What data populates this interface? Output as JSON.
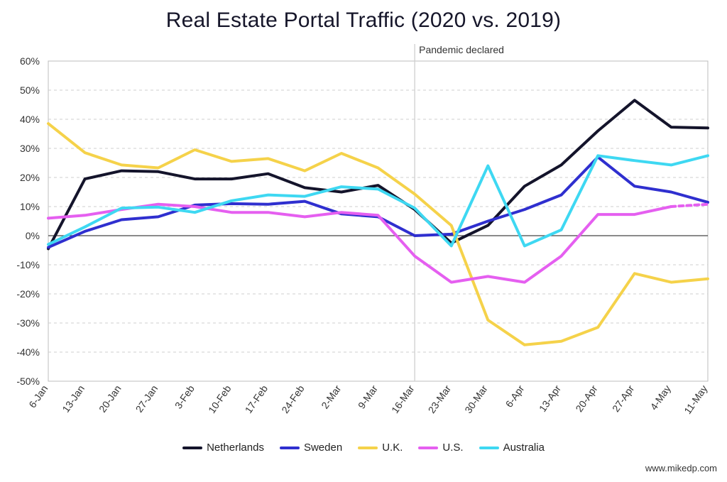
{
  "chart_data": {
    "type": "line",
    "title": "Real Estate Portal Traffic (2020 vs. 2019)",
    "xlabel": "",
    "ylabel": "",
    "categories": [
      "6-Jan",
      "13-Jan",
      "20-Jan",
      "27-Jan",
      "3-Feb",
      "10-Feb",
      "17-Feb",
      "24-Feb",
      "2-Mar",
      "9-Mar",
      "16-Mar",
      "23-Mar",
      "30-Mar",
      "6-Apr",
      "13-Apr",
      "20-Apr",
      "27-Apr",
      "4-May",
      "11-May"
    ],
    "ylim": [
      -50,
      60
    ],
    "yticks": [
      "60%",
      "50%",
      "40%",
      "30%",
      "20%",
      "10%",
      "0%",
      "-10%",
      "-20%",
      "-30%",
      "-40%",
      "-50%"
    ],
    "grid": true,
    "legend_position": "bottom",
    "annotation": {
      "label": "Pandemic declared",
      "at": "16-Mar"
    },
    "series": [
      {
        "name": "Netherlands",
        "color": "#14142b",
        "values": [
          -4.5,
          19.5,
          22.3,
          22.0,
          19.5,
          19.5,
          21.3,
          16.5,
          15.0,
          17.3,
          9.0,
          -2.5,
          3.5,
          17.0,
          24.3,
          36.0,
          46.5,
          37.3,
          37.0
        ]
      },
      {
        "name": "Sweden",
        "color": "#2f2fcf",
        "values": [
          -4.0,
          1.5,
          5.5,
          6.5,
          10.5,
          11.0,
          10.8,
          11.8,
          7.5,
          6.5,
          0.0,
          0.5,
          5.0,
          9.0,
          14.0,
          27.0,
          17.0,
          15.0,
          11.5
        ]
      },
      {
        "name": "U.K.",
        "color": "#f5d24a",
        "values": [
          38.5,
          28.5,
          24.3,
          23.3,
          29.5,
          25.5,
          26.5,
          22.3,
          28.3,
          23.3,
          14.3,
          3.5,
          -29.0,
          -37.5,
          -36.3,
          -31.5,
          -13.0,
          -16.0,
          -14.8
        ]
      },
      {
        "name": "U.S.",
        "color": "#e55ff0",
        "values": [
          6.0,
          7.0,
          9.0,
          10.8,
          10.0,
          8.0,
          8.0,
          6.5,
          8.0,
          7.0,
          -7.0,
          -16.0,
          -14.0,
          -16.0,
          -7.0,
          7.3,
          7.3,
          10.0,
          10.8
        ],
        "dashed_last_segment": true
      },
      {
        "name": "Australia",
        "color": "#3ed8f2",
        "values": [
          -3.0,
          3.0,
          9.5,
          9.8,
          8.0,
          12.0,
          14.0,
          13.5,
          16.8,
          16.0,
          9.5,
          -3.5,
          24.0,
          -3.5,
          2.0,
          27.5,
          25.8,
          24.3,
          27.5
        ]
      }
    ]
  },
  "credit": "www.mikedp.com"
}
